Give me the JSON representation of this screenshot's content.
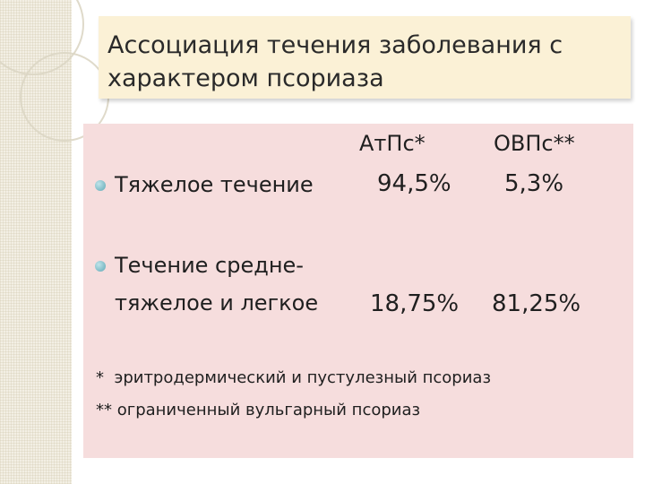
{
  "title": {
    "line1": "Ассоциация течения заболевания с",
    "line2": "характером псориаза"
  },
  "table": {
    "columns": [
      "АтПс*",
      "ОВПс**"
    ],
    "rows": [
      {
        "label_line1": "Тяжелое течение",
        "label_line2": "",
        "values": [
          "94,5%",
          "5,3%"
        ]
      },
      {
        "label_line1": "Течение средне-",
        "label_line2": "тяжелое и легкое",
        "values": [
          "18,75%",
          "81,25%"
        ]
      }
    ]
  },
  "footnotes": [
    "*  эритродермический и пустулезный псориаз",
    "** ограниченный вульгарный псориаз"
  ],
  "colors": {
    "title_bg": "#fbf1d6",
    "content_bg": "#f6dddd",
    "bullet": "#5fa8b5"
  },
  "icons": {
    "bullet": "round-bullet-icon"
  }
}
